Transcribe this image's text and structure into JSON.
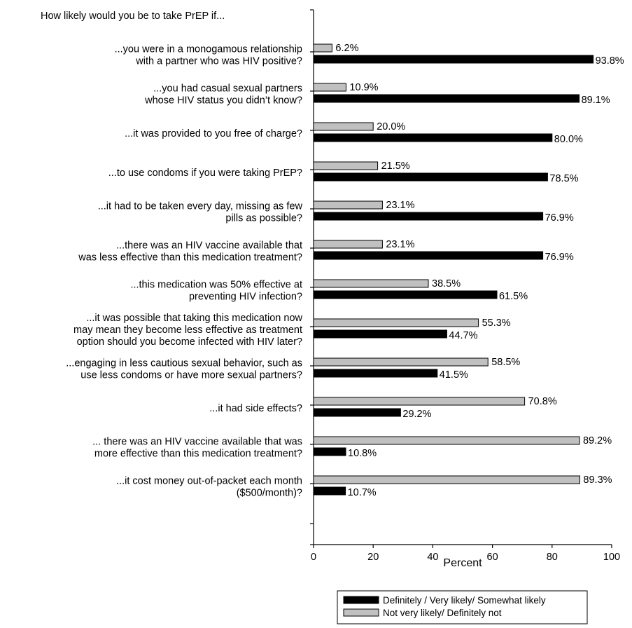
{
  "chart_data": {
    "type": "bar",
    "orientation": "horizontal",
    "title": "How likely would you be to take PrEP if...",
    "xlabel": "Percent",
    "ylabel": "",
    "xlim": [
      0,
      100
    ],
    "xticks": [
      "0",
      "20",
      "40",
      "60",
      "80",
      "100"
    ],
    "grid": false,
    "legend_position": "bottom-right",
    "categories": [
      [
        "...you were in a monogamous relationship",
        "with a partner who was HIV positive?"
      ],
      [
        "...you had casual sexual partners",
        "whose HIV status you didn’t know?"
      ],
      [
        "...it was provided to you free of charge?"
      ],
      [
        "...to use condoms if you were taking PrEP?"
      ],
      [
        "...it had to be taken every day, missing as few",
        "pills as possible?"
      ],
      [
        "...there was an HIV vaccine available that",
        "was less effective than this medication treatment?"
      ],
      [
        "...this medication was 50% effective at",
        "preventing HIV infection?"
      ],
      [
        "...it was possible that taking this medication now",
        "may mean they become less effective as treatment",
        "option should you become infected with HIV later?"
      ],
      [
        "...engaging in less cautious sexual behavior, such as",
        "use less condoms or have more sexual partners?"
      ],
      [
        "...it had side effects?"
      ],
      [
        "... there was an HIV vaccine available that was",
        "more effective than this medication treatment?"
      ],
      [
        "...it cost money out-of-packet each month",
        "($500/month)?"
      ]
    ],
    "series": [
      {
        "name": "Not very likely/ Definitely not",
        "color": "#c0c0c0",
        "values": [
          6.2,
          10.9,
          20.0,
          21.5,
          23.1,
          23.1,
          38.5,
          55.3,
          58.5,
          70.8,
          89.2,
          89.3
        ],
        "labels": [
          "6.2%",
          "10.9%",
          "20.0%",
          "21.5%",
          "23.1%",
          "23.1%",
          "38.5%",
          "55.3%",
          "58.5%",
          "70.8%",
          "89.2%",
          "89.3%"
        ]
      },
      {
        "name": "Definitely / Very likely/ Somewhat likely",
        "color": "#000000",
        "values": [
          93.8,
          89.1,
          80.0,
          78.5,
          76.9,
          76.9,
          61.5,
          44.7,
          41.5,
          29.2,
          10.8,
          10.7
        ],
        "labels": [
          "93.8%",
          "89.1%",
          "80.0%",
          "78.5%",
          "76.9%",
          "76.9%",
          "61.5%",
          "44.7%",
          "41.5%",
          "29.2%",
          "10.8%",
          "10.7%"
        ]
      }
    ],
    "legend": [
      {
        "name": "Definitely / Very likely/ Somewhat likely",
        "color": "#000000"
      },
      {
        "name": "Not very likely/ Definitely not",
        "color": "#c0c0c0"
      }
    ]
  }
}
